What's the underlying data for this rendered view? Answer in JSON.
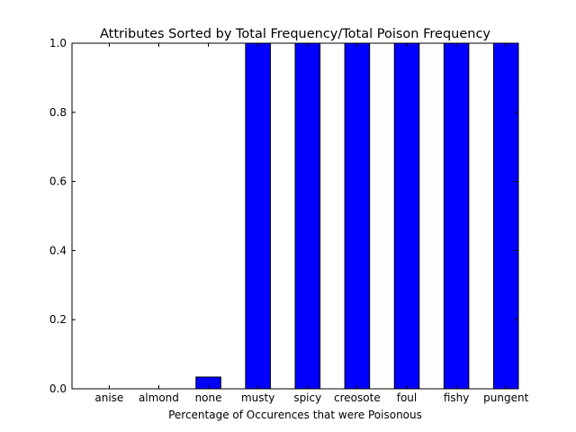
{
  "chart_data": {
    "type": "bar",
    "title": "Attributes Sorted by Total Frequency/Total Poison Frequency",
    "xlabel": "Percentage of Occurences that were Poisonous",
    "ylabel": "",
    "categories": [
      "anise",
      "almond",
      "none",
      "musty",
      "spicy",
      "creosote",
      "foul",
      "fishy",
      "pungent"
    ],
    "values": [
      0.0,
      0.0,
      0.034,
      1.0,
      1.0,
      1.0,
      1.0,
      1.0,
      1.0
    ],
    "ylim": [
      0,
      1.0
    ],
    "yticks": [
      "0.0",
      "0.2",
      "0.4",
      "0.6",
      "0.8",
      "1.0"
    ],
    "bar_color": "#0000ff",
    "grid": false,
    "legend": "none"
  }
}
